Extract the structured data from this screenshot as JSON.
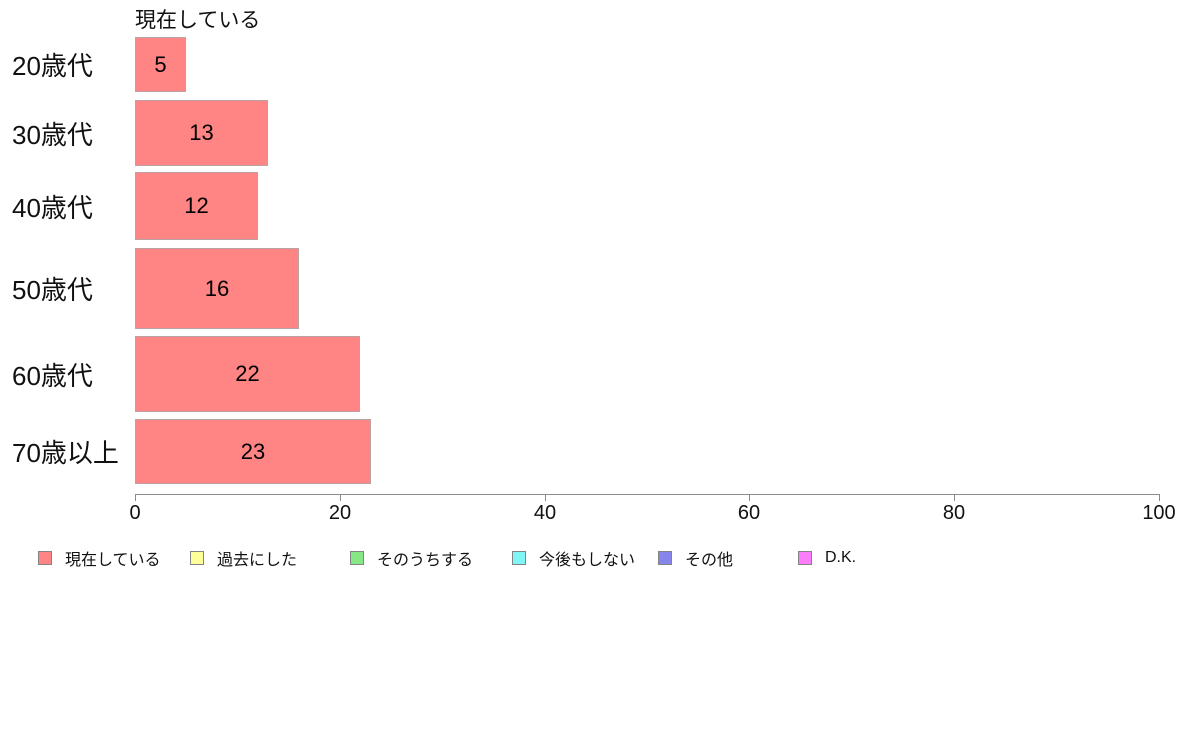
{
  "chart_data": {
    "type": "bar",
    "orientation": "horizontal",
    "title": "現在している",
    "categories": [
      "20歳代",
      "30歳代",
      "40歳代",
      "50歳代",
      "60歳代",
      "70歳以上"
    ],
    "series": [
      {
        "name": "現在している",
        "values": [
          5,
          13,
          12,
          16,
          22,
          23
        ],
        "color": "#FF8585",
        "border_color": "#bba3a3"
      }
    ],
    "xlabel": "",
    "ylabel": "",
    "xlim": [
      0,
      100
    ],
    "x_ticks": [
      "0",
      "20",
      "40",
      "60",
      "80",
      "100"
    ],
    "grid": false,
    "legend_position": "bottom",
    "legend": [
      {
        "label": "現在している",
        "color": "#FF8585"
      },
      {
        "label": "過去にした",
        "color": "#FFFF99"
      },
      {
        "label": "そのうちする",
        "color": "#85E885"
      },
      {
        "label": "今後もしない",
        "color": "#80F5F5"
      },
      {
        "label": "その他",
        "color": "#8585EC"
      },
      {
        "label": "D.K.",
        "color": "#FB7DFB"
      }
    ],
    "axis_color": "#8c8c8c"
  }
}
